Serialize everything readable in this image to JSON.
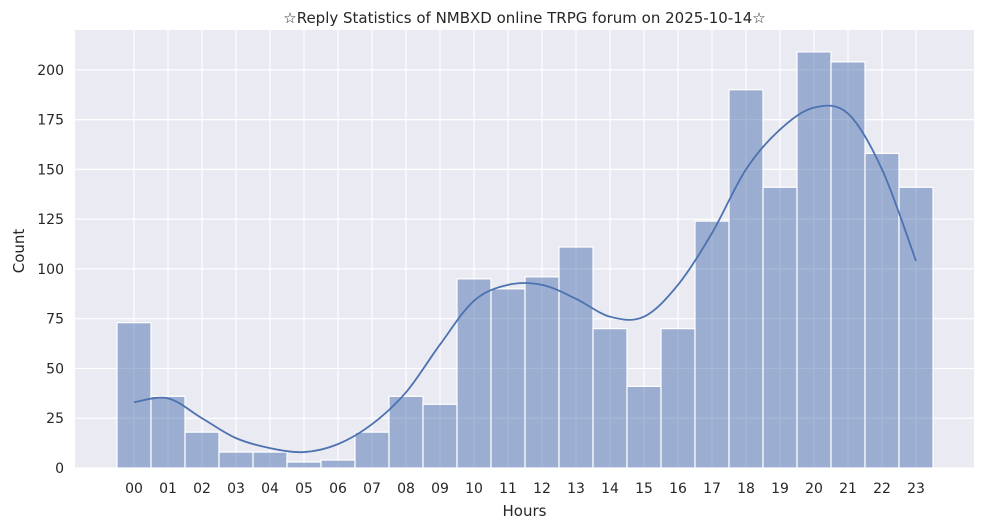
{
  "chart_data": {
    "type": "bar",
    "title": "☆Reply Statistics of NMBXD online TRPG forum on 2025-10-14☆",
    "xlabel": "Hours",
    "ylabel": "Count",
    "categories": [
      "00",
      "01",
      "02",
      "03",
      "04",
      "05",
      "06",
      "07",
      "08",
      "09",
      "10",
      "11",
      "12",
      "13",
      "14",
      "15",
      "16",
      "17",
      "18",
      "19",
      "20",
      "21",
      "22",
      "23"
    ],
    "values": [
      73,
      36,
      18,
      8,
      8,
      3,
      4,
      18,
      36,
      32,
      95,
      90,
      96,
      111,
      70,
      41,
      70,
      124,
      190,
      141,
      209,
      204,
      158,
      141
    ],
    "ylim": [
      0,
      220
    ],
    "yticks": [
      0,
      25,
      50,
      75,
      100,
      125,
      150,
      175,
      200
    ],
    "kde_line": [
      33,
      35,
      25,
      15,
      10,
      8,
      12,
      22,
      38,
      62,
      84,
      92,
      92,
      85,
      76,
      76,
      92,
      118,
      150,
      170,
      181,
      178,
      150,
      104
    ],
    "grid": true,
    "colors": {
      "bar": "#4c72b0",
      "background": "#eaeaf2",
      "grid": "#ffffff"
    }
  }
}
